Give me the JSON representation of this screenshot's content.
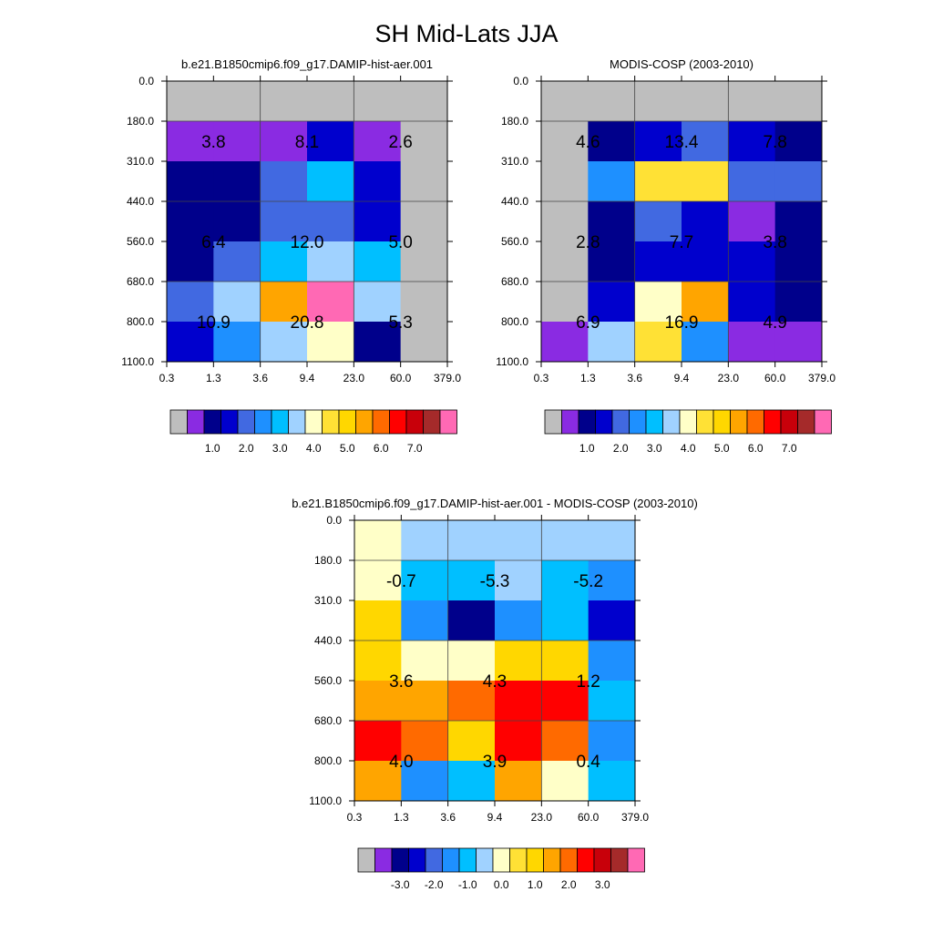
{
  "figure": {
    "title": "SH Mid-Lats JJA"
  },
  "palette": [
    "#bebebe",
    "#8a2be2",
    "#00008b",
    "#0000cd",
    "#4169e1",
    "#1e90ff",
    "#00bfff",
    "#a0d2ff",
    "#ffffc8",
    "#ffe135",
    "#ffd700",
    "#ffa500",
    "#ff6a00",
    "#ff0000",
    "#c8000a",
    "#a52a2a",
    "#ff69b4"
  ],
  "chart_data": [
    {
      "type": "heatmap",
      "title": "b.e21.B1850cmip6.f09_g17.DAMIP-hist-aer.001",
      "x_ticks": [
        "0.3",
        "1.3",
        "3.6",
        "9.4",
        "23.0",
        "60.0",
        "379.0"
      ],
      "y_ticks": [
        "0.0",
        "180.0",
        "310.0",
        "440.0",
        "560.0",
        "680.0",
        "800.0",
        "1100.0"
      ],
      "colorbar_labels": [
        "1.0",
        "2.0",
        "3.0",
        "4.0",
        "5.0",
        "6.0",
        "7.0"
      ],
      "cells": [
        [
          0,
          0,
          0,
          0,
          0,
          0
        ],
        [
          1,
          1,
          1,
          3,
          1,
          0
        ],
        [
          2,
          2,
          4,
          6,
          3,
          0
        ],
        [
          2,
          2,
          4,
          4,
          3,
          0
        ],
        [
          2,
          4,
          6,
          7,
          6,
          0
        ],
        [
          4,
          7,
          11,
          16,
          7,
          0
        ],
        [
          3,
          5,
          7,
          8,
          2,
          0
        ]
      ],
      "annotations": [
        {
          "text": "3.8",
          "x_band": 0,
          "y_band": 1
        },
        {
          "text": "8.1",
          "x_band": 1,
          "y_band": 1
        },
        {
          "text": "2.6",
          "x_band": 2,
          "y_band": 1
        },
        {
          "text": "6.4",
          "x_band": 0,
          "y_band": 2
        },
        {
          "text": "12.0",
          "x_band": 1,
          "y_band": 2
        },
        {
          "text": "5.0",
          "x_band": 2,
          "y_band": 2
        },
        {
          "text": "10.9",
          "x_band": 0,
          "y_band": 3
        },
        {
          "text": "20.8",
          "x_band": 1,
          "y_band": 3
        },
        {
          "text": "5.3",
          "x_band": 2,
          "y_band": 3
        }
      ]
    },
    {
      "type": "heatmap",
      "title": "MODIS-COSP (2003-2010)",
      "x_ticks": [
        "0.3",
        "1.3",
        "3.6",
        "9.4",
        "23.0",
        "60.0",
        "379.0"
      ],
      "y_ticks": [
        "0.0",
        "180.0",
        "310.0",
        "440.0",
        "560.0",
        "680.0",
        "800.0",
        "1100.0"
      ],
      "colorbar_labels": [
        "1.0",
        "2.0",
        "3.0",
        "4.0",
        "5.0",
        "6.0",
        "7.0"
      ],
      "cells": [
        [
          0,
          0,
          0,
          0,
          0,
          0
        ],
        [
          0,
          2,
          3,
          4,
          3,
          2
        ],
        [
          0,
          5,
          9,
          9,
          4,
          4
        ],
        [
          0,
          2,
          4,
          3,
          1,
          2
        ],
        [
          0,
          2,
          3,
          3,
          3,
          2
        ],
        [
          0,
          3,
          8,
          11,
          3,
          2
        ],
        [
          1,
          7,
          9,
          5,
          1,
          1
        ]
      ],
      "annotations": [
        {
          "text": "4.6",
          "x_band": 0,
          "y_band": 1
        },
        {
          "text": "13.4",
          "x_band": 1,
          "y_band": 1
        },
        {
          "text": "7.8",
          "x_band": 2,
          "y_band": 1
        },
        {
          "text": "2.8",
          "x_band": 0,
          "y_band": 2
        },
        {
          "text": "7.7",
          "x_band": 1,
          "y_band": 2
        },
        {
          "text": "3.8",
          "x_band": 2,
          "y_band": 2
        },
        {
          "text": "6.9",
          "x_band": 0,
          "y_band": 3
        },
        {
          "text": "16.9",
          "x_band": 1,
          "y_band": 3
        },
        {
          "text": "4.9",
          "x_band": 2,
          "y_band": 3
        }
      ]
    },
    {
      "type": "heatmap",
      "title": "b.e21.B1850cmip6.f09_g17.DAMIP-hist-aer.001 - MODIS-COSP (2003-2010)",
      "x_ticks": [
        "0.3",
        "1.3",
        "3.6",
        "9.4",
        "23.0",
        "60.0",
        "379.0"
      ],
      "y_ticks": [
        "0.0",
        "180.0",
        "310.0",
        "440.0",
        "560.0",
        "680.0",
        "800.0",
        "1100.0"
      ],
      "colorbar_labels": [
        "-3.0",
        "-2.0",
        "-1.0",
        "0.0",
        "1.0",
        "2.0",
        "3.0"
      ],
      "cells": [
        [
          8,
          7,
          7,
          7,
          7,
          7
        ],
        [
          8,
          6,
          6,
          7,
          6,
          5
        ],
        [
          10,
          5,
          2,
          5,
          6,
          3
        ],
        [
          10,
          8,
          8,
          10,
          10,
          5
        ],
        [
          11,
          11,
          12,
          13,
          13,
          6
        ],
        [
          13,
          12,
          10,
          13,
          12,
          5
        ],
        [
          11,
          5,
          6,
          11,
          8,
          6
        ]
      ],
      "annotations": [
        {
          "text": "-0.7",
          "x_band": 0,
          "y_band": 1
        },
        {
          "text": "-5.3",
          "x_band": 1,
          "y_band": 1
        },
        {
          "text": "-5.2",
          "x_band": 2,
          "y_band": 1
        },
        {
          "text": "3.6",
          "x_band": 0,
          "y_band": 2
        },
        {
          "text": "4.3",
          "x_band": 1,
          "y_band": 2
        },
        {
          "text": "1.2",
          "x_band": 2,
          "y_band": 2
        },
        {
          "text": "4.0",
          "x_band": 0,
          "y_band": 3
        },
        {
          "text": "3.9",
          "x_band": 1,
          "y_band": 3
        },
        {
          "text": "0.4",
          "x_band": 2,
          "y_band": 3
        }
      ]
    }
  ]
}
